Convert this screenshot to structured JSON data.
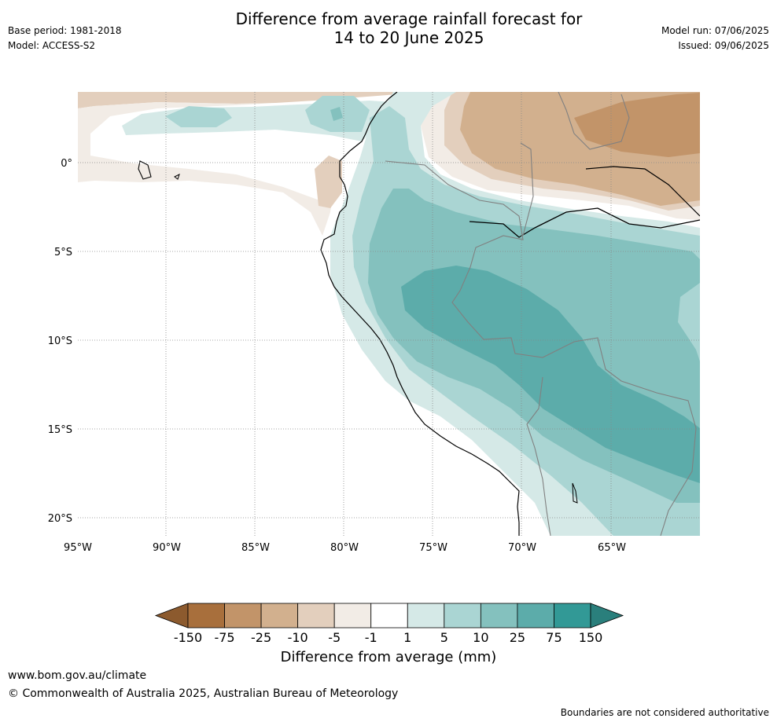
{
  "header": {
    "title_line1": "Difference from average rainfall forecast for",
    "title_line2": "14 to 20 June 2025",
    "base_period": "Base period: 1981-2018",
    "model": "Model: ACCESS-S2",
    "model_run": "Model run: 07/06/2025",
    "issued": "Issued: 09/06/2025"
  },
  "map": {
    "lat_labels": [
      "0°",
      "5°S",
      "10°S",
      "15°S",
      "20°S"
    ],
    "lon_labels": [
      "95°W",
      "90°W",
      "85°W",
      "80°W",
      "75°W",
      "70°W",
      "65°W"
    ],
    "colors": {
      "brown_dark": "#a86f3c",
      "brown": "#c29469",
      "tan": "#d2b08e",
      "tan_light": "#e3cfbd",
      "beige": "#f2ece6",
      "white": "#ffffff",
      "teal_pale": "#d5e9e7",
      "teal_light": "#aad5d3",
      "teal_mid": "#84c1be",
      "teal": "#5cacaa",
      "teal_dark": "#329996"
    }
  },
  "colorbar": {
    "ticks": [
      "-150",
      "-75",
      "-25",
      "-10",
      "-5",
      "-1",
      "1",
      "5",
      "10",
      "25",
      "75",
      "150"
    ],
    "colors": [
      "#a86f3c",
      "#c29469",
      "#d2b08e",
      "#e3cfbd",
      "#f2ece6",
      "#ffffff",
      "#d5e9e7",
      "#aad5d3",
      "#84c1be",
      "#5cacaa",
      "#329996"
    ],
    "min_arrow_color": "#8c5a2e",
    "max_arrow_color": "#2a7f7c",
    "label": "Difference from average (mm)"
  },
  "footer": {
    "website": "www.bom.gov.au/climate",
    "copyright": "© Commonwealth of Australia 2025, Australian Bureau of Meteorology",
    "disclaimer": "Boundaries are not considered authoritative"
  }
}
